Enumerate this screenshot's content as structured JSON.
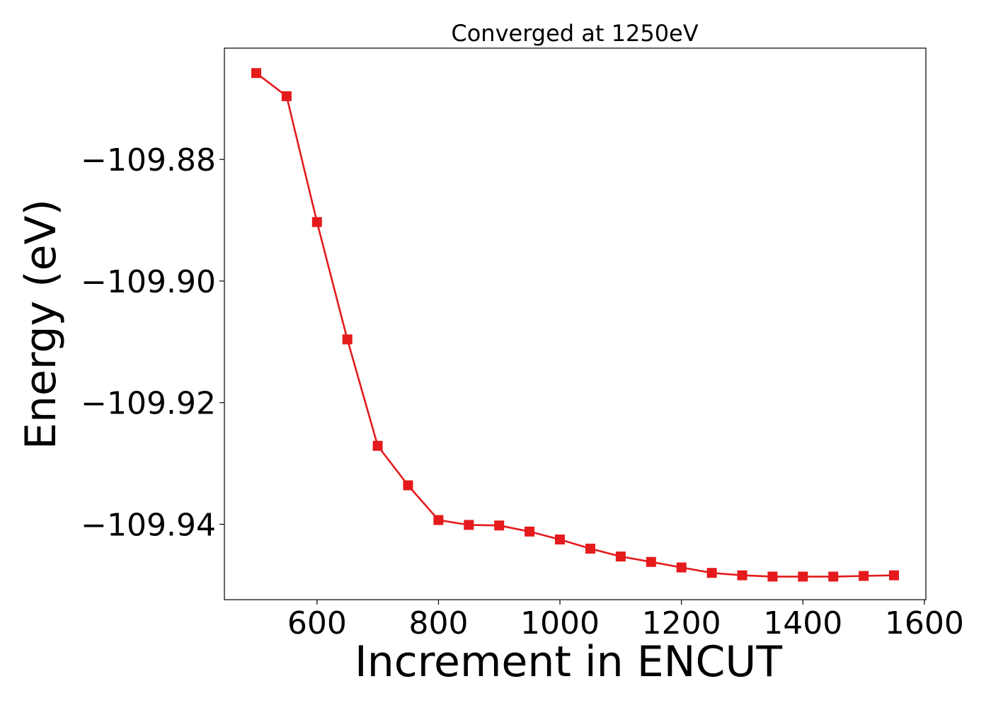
{
  "chart_data": {
    "type": "line",
    "title": "Converged at 1250eV",
    "xlabel": "Increment in ENCUT",
    "ylabel": "Energy (eV)",
    "xlim": [
      447.5,
      1602.5
    ],
    "ylim": [
      -109.9524,
      -109.8617
    ],
    "xticks": [
      600,
      800,
      1000,
      1200,
      1400,
      1600
    ],
    "xtick_labels": [
      "600",
      "800",
      "1000",
      "1200",
      "1400",
      "1600"
    ],
    "yticks": [
      -109.88,
      -109.9,
      -109.92,
      -109.94
    ],
    "ytick_labels": [
      "−109.88",
      "−109.90",
      "−109.92",
      "−109.94"
    ],
    "grid": false,
    "series": [
      {
        "color": "#e41a1c",
        "marker": "square",
        "x": [
          500,
          550,
          600,
          650,
          700,
          750,
          800,
          850,
          900,
          950,
          1000,
          1050,
          1100,
          1150,
          1200,
          1250,
          1300,
          1350,
          1400,
          1450,
          1500,
          1550
        ],
        "y": [
          -109.8658,
          -109.8696,
          -109.8903,
          -109.9096,
          -109.9271,
          -109.9336,
          -109.9393,
          -109.9401,
          -109.9402,
          -109.9412,
          -109.9425,
          -109.944,
          -109.9453,
          -109.9462,
          -109.9471,
          -109.948,
          -109.9484,
          -109.9486,
          -109.9486,
          -109.9486,
          -109.9485,
          -109.9484
        ]
      }
    ]
  }
}
